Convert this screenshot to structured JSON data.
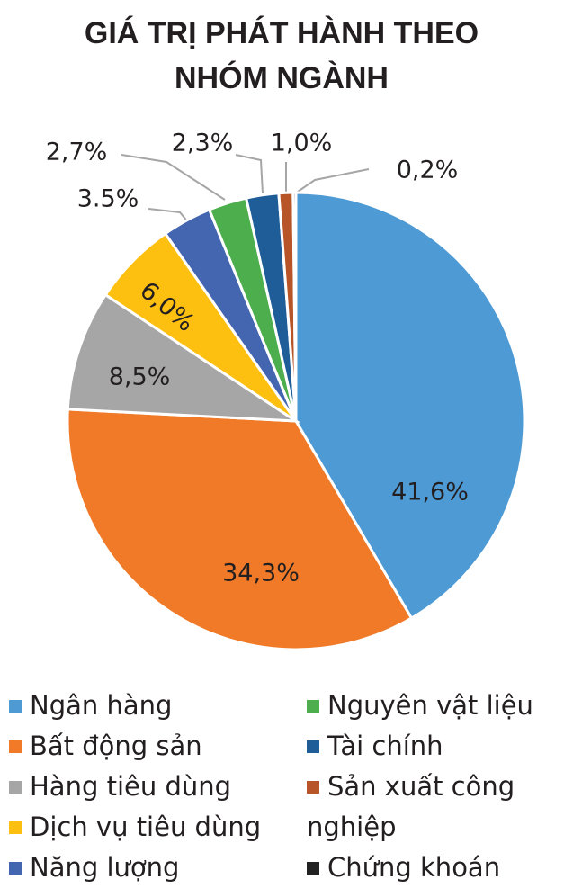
{
  "chart_data": {
    "type": "pie",
    "title": "GIÁ TRỊ PHÁT HÀNH THEO NHÓM NGÀNH",
    "categories": [
      "Ngân hàng",
      "Bất động sản",
      "Hàng tiêu dùng",
      "Dịch vụ tiêu dùng",
      "Năng lượng",
      "Nguyên vật liệu",
      "Tài chính",
      "Sản xuất công nghiệp",
      "Chứng khoán"
    ],
    "values": [
      41.6,
      34.3,
      8.5,
      6.0,
      3.5,
      2.7,
      2.3,
      1.0,
      0.2
    ],
    "value_labels": [
      "41,6%",
      "34,3%",
      "8,5%",
      "6,0%",
      "3.5%",
      "2,7%",
      "2,3%",
      "1,0%",
      "0,2%"
    ],
    "colors": [
      "#4e9ad4",
      "#f07a28",
      "#a6a6a6",
      "#fdc010",
      "#4466b0",
      "#4cae4c",
      "#1f5d98",
      "#b85528",
      "#222222"
    ]
  }
}
